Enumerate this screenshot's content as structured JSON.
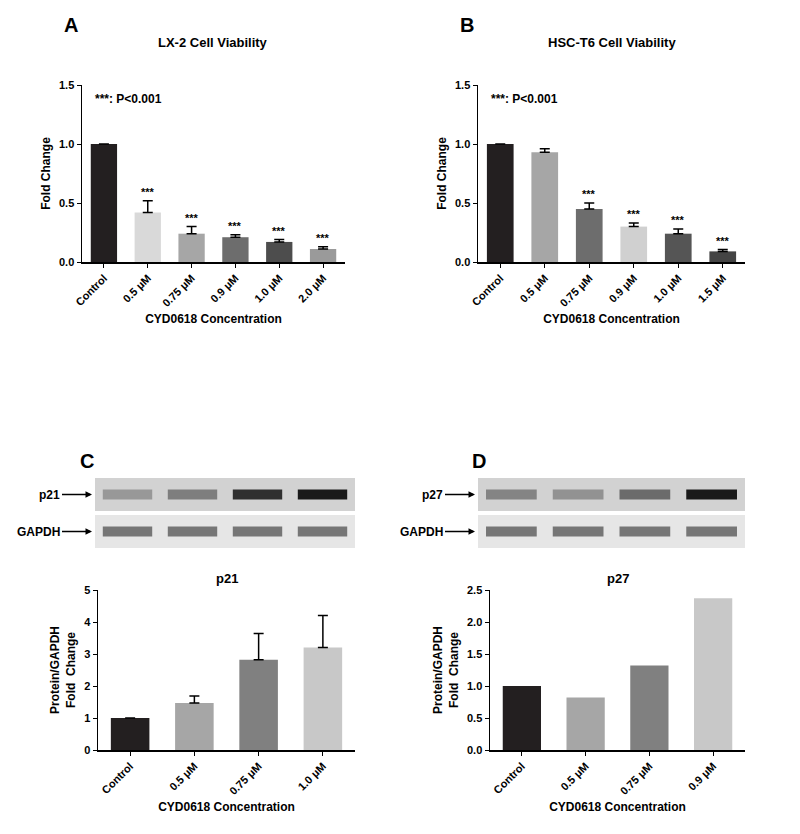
{
  "chart_data": [
    {
      "type": "bar",
      "panel": "A",
      "title": "LX-2 Cell Viability",
      "x_label": "CYD0618 Concentration",
      "y_label": "Fold Change",
      "annotations": [
        "***: P<0.001"
      ],
      "categories": [
        "Control",
        "0.5 μM",
        "0.75 μM",
        "0.9 μM",
        "1.0 μM",
        "2.0 μM"
      ],
      "values": [
        1.0,
        0.42,
        0.24,
        0.21,
        0.17,
        0.11
      ],
      "errors": [
        0,
        0.1,
        0.06,
        0.02,
        0.02,
        0.02
      ],
      "significance": [
        null,
        "***",
        "***",
        "***",
        "***",
        "***"
      ],
      "colors": [
        "#231f20",
        "#d9d9d9",
        "#a6a6a6",
        "#6d6d6d",
        "#4d4d4d",
        "#9a9a9a"
      ],
      "ylim": [
        0,
        1.5
      ],
      "yticks": [
        {
          "value": 0,
          "label": "0.0"
        },
        0.5,
        {
          "value": 1,
          "label": "1.0"
        },
        0.5,
        {
          "value": 1.5,
          "label": "1.5"
        }
      ],
      "grid": false
    },
    {
      "type": "bar",
      "panel": "B",
      "title": "HSC-T6 Cell Viability",
      "x_label": "CYD0618 Concentration",
      "y_label": "Fold Change",
      "annotations": [
        "***: P<0.001"
      ],
      "categories": [
        "Control",
        "0.5 μM",
        "0.75 μM",
        "0.9 μM",
        "1.0 μM",
        "1.5 μM"
      ],
      "values": [
        1.0,
        0.93,
        0.45,
        0.3,
        0.24,
        0.09
      ],
      "errors": [
        0,
        0.03,
        0.05,
        0.03,
        0.04,
        0.015
      ],
      "significance": [
        null,
        null,
        "***",
        "***",
        "***",
        "***"
      ],
      "colors": [
        "#231f20",
        "#a6a6a6",
        "#6d6d6d",
        "#d0d0d0",
        "#555555",
        "#444444"
      ],
      "ylim": [
        0,
        1.5
      ],
      "yticks": [
        {
          "value": 0,
          "label": "0.0"
        },
        0.5,
        {
          "value": 1,
          "label": "1.0"
        },
        {
          "value": 1.5,
          "label": "1.5"
        }
      ],
      "grid": false
    },
    {
      "type": "bar",
      "panel": "C",
      "title": "p21",
      "x_label": "CYD0618 Concentration",
      "y_label": "Protein/GAPDH\nFold  Change",
      "blot": [
        "p21",
        "GAPDH"
      ],
      "categories": [
        "Control",
        "0.5 μM",
        "0.75 μM",
        "1.0 μM"
      ],
      "values": [
        1.0,
        1.47,
        2.82,
        3.2
      ],
      "errors": [
        0,
        0.22,
        0.82,
        1.0
      ],
      "colors": [
        "#231f20",
        "#a6a6a6",
        "#808080",
        "#c8c8c8"
      ],
      "ylim": [
        0,
        5
      ],
      "yticks": [
        0,
        1,
        2,
        3,
        4,
        5
      ],
      "grid": false
    },
    {
      "type": "bar",
      "panel": "D",
      "title": "p27",
      "x_label": "CYD0618 Concentration",
      "y_label": "Protein/GAPDH\nFold  Change",
      "blot": [
        "p27",
        "GAPDH"
      ],
      "categories": [
        "Control",
        "0.5 μM",
        "0.75 μM",
        "0.9 μM"
      ],
      "values": [
        1.0,
        0.82,
        1.32,
        2.37
      ],
      "colors": [
        "#231f20",
        "#a6a6a6",
        "#808080",
        "#c8c8c8"
      ],
      "ylim": [
        0,
        2.5
      ],
      "yticks": [
        {
          "value": 0,
          "label": "0.0"
        },
        0.5,
        {
          "value": 1,
          "label": "1.0"
        },
        1.5,
        {
          "value": 2,
          "label": "2.0"
        },
        2.5
      ],
      "grid": false
    }
  ]
}
